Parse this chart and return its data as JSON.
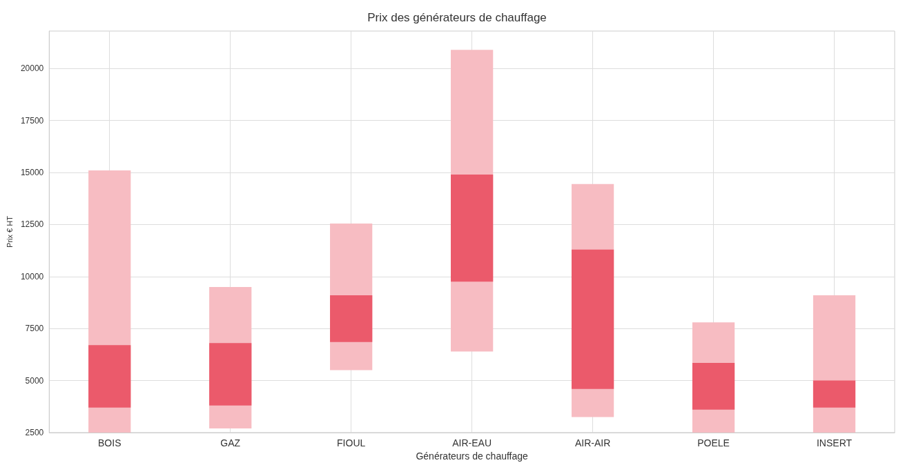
{
  "chart_data": {
    "type": "bar",
    "title": "Prix des générateurs de chauffage",
    "xlabel": "Générateurs de chauffage",
    "ylabel": "Prix € HT",
    "categories": [
      "BOIS",
      "GAZ",
      "FIOUL",
      "AIR-EAU",
      "AIR-AIR",
      "POELE",
      "INSERT"
    ],
    "series": [
      {
        "color": "#f7bcc2",
        "base": [
          2500,
          2700,
          5500,
          6400,
          3250,
          2500,
          2500
        ],
        "values": [
          12600,
          6800,
          7050,
          14500,
          11200,
          5300,
          6600
        ]
      },
      {
        "color": "#eb5a6b",
        "base": [
          3700,
          3800,
          6850,
          9750,
          4600,
          3600,
          3700
        ],
        "values": [
          3000,
          3000,
          2250,
          5150,
          6700,
          2250,
          1300
        ]
      }
    ],
    "ylim": [
      2500,
      21800
    ],
    "yticks": [
      2500,
      5000,
      7500,
      10000,
      12500,
      15000,
      17500,
      20000
    ],
    "grid": true
  }
}
